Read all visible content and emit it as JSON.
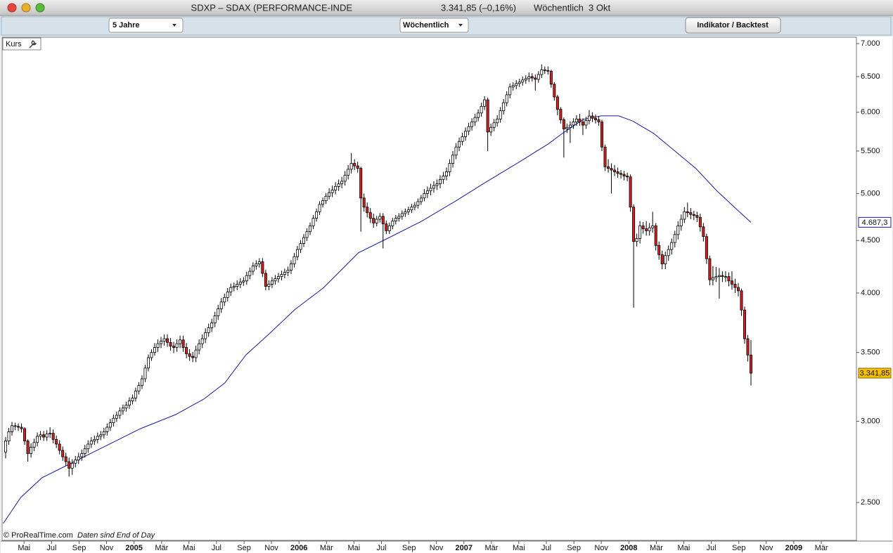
{
  "window": {
    "title": "SDXP – SDAX (PERFORMANCE-INDE",
    "quote": "3.341,85 (–0,16%)",
    "period": "Wöchentlich  3 Okt"
  },
  "toolbar": {
    "range": "5 Jahre",
    "interval": "Wöchentlich",
    "button": "Indikator / Backtest"
  },
  "panel_label": "Kurs",
  "footer": {
    "copyright": "© ProRealTime.com",
    "note": "Daten sind End of Day"
  },
  "chart_data": {
    "type": "candlestick",
    "log_scale": true,
    "ylim": [
      2300,
      7100
    ],
    "yticks": [
      {
        "value": 2500,
        "label": "2.500"
      },
      {
        "value": 3000,
        "label": "3.000"
      },
      {
        "value": 3500,
        "label": "3.500"
      },
      {
        "value": 4000,
        "label": "4.000"
      },
      {
        "value": 4500,
        "label": "4.500"
      },
      {
        "value": 5000,
        "label": "5.000"
      },
      {
        "value": 5500,
        "label": "5.500"
      },
      {
        "value": 6000,
        "label": "6.000"
      },
      {
        "value": 6500,
        "label": "6.500"
      },
      {
        "value": 7000,
        "label": "7.000"
      }
    ],
    "xlim": [
      2004.2,
      2009.38
    ],
    "xticks": [
      {
        "value": 2004.333,
        "label": "Mai"
      },
      {
        "value": 2004.5,
        "label": "Jul"
      },
      {
        "value": 2004.667,
        "label": "Sep"
      },
      {
        "value": 2004.833,
        "label": "Nov"
      },
      2005,
      {
        "value": 2005.167,
        "label": "Mär"
      },
      {
        "value": 2005.333,
        "label": "Mai"
      },
      {
        "value": 2005.5,
        "label": "Jul"
      },
      {
        "value": 2005.667,
        "label": "Sep"
      },
      {
        "value": 2005.833,
        "label": "Nov"
      },
      2006,
      {
        "value": 2006.167,
        "label": "Mär"
      },
      {
        "value": 2006.333,
        "label": "Mai"
      },
      {
        "value": 2006.5,
        "label": "Jul"
      },
      {
        "value": 2006.667,
        "label": "Sep"
      },
      {
        "value": 2006.833,
        "label": "Nov"
      },
      2007,
      {
        "value": 2007.167,
        "label": "Mär"
      },
      {
        "value": 2007.333,
        "label": "Mai"
      },
      {
        "value": 2007.5,
        "label": "Jul"
      },
      {
        "value": 2007.667,
        "label": "Sep"
      },
      {
        "value": 2007.833,
        "label": "Nov"
      },
      2008,
      {
        "value": 2008.167,
        "label": "Mär"
      },
      {
        "value": 2008.333,
        "label": "Mai"
      },
      {
        "value": 2008.5,
        "label": "Jul"
      },
      {
        "value": 2008.667,
        "label": "Sep"
      },
      {
        "value": 2008.833,
        "label": "Nov"
      },
      2009,
      {
        "value": 2009.167,
        "label": "Mär"
      }
    ],
    "candles": {
      "up_color": "#ffffff",
      "down_color": "#d42020",
      "open": [
        2800,
        2870,
        2930,
        2970,
        2965,
        2960,
        2950,
        2870,
        2790,
        2830,
        2860,
        2900,
        2910,
        2895,
        2915,
        2920,
        2880,
        2850,
        2810,
        2770,
        2740,
        2700,
        2730,
        2750,
        2770,
        2790,
        2820,
        2850,
        2870,
        2880,
        2900,
        2910,
        2930,
        2960,
        2990,
        3020,
        3040,
        3070,
        3090,
        3110,
        3140,
        3160,
        3210,
        3250,
        3300,
        3380,
        3460,
        3500,
        3540,
        3570,
        3590,
        3610,
        3580,
        3550,
        3540,
        3570,
        3600,
        3540,
        3490,
        3470,
        3460,
        3520,
        3570,
        3610,
        3660,
        3700,
        3740,
        3800,
        3860,
        3920,
        3960,
        4010,
        4050,
        4060,
        4080,
        4100,
        4110,
        4160,
        4200,
        4250,
        4270,
        4290,
        4180,
        4060,
        4080,
        4110,
        4130,
        4150,
        4170,
        4190,
        4210,
        4270,
        4340,
        4410,
        4470,
        4530,
        4590,
        4650,
        4730,
        4800,
        4880,
        4920,
        4970,
        5010,
        5040,
        5080,
        5110,
        5140,
        5210,
        5280,
        5350,
        5320,
        5290,
        4950,
        4850,
        4790,
        4730,
        4680,
        4720,
        4750,
        4670,
        4600,
        4650,
        4700,
        4730,
        4750,
        4780,
        4800,
        4820,
        4850,
        4870,
        4910,
        4950,
        5000,
        5030,
        5060,
        5090,
        5110,
        5160,
        5200,
        5250,
        5350,
        5450,
        5550,
        5620,
        5680,
        5750,
        5810,
        5870,
        5930,
        5990,
        6080,
        6170,
        5740,
        5800,
        5860,
        5910,
        6020,
        6130,
        6240,
        6350,
        6370,
        6400,
        6420,
        6450,
        6470,
        6500,
        6480,
        6460,
        6530,
        6600,
        6590,
        6580,
        6390,
        6210,
        6040,
        5900,
        5780,
        5800,
        5830,
        5870,
        5910,
        5870,
        5830,
        5890,
        5950,
        5920,
        5900,
        5870,
        5550,
        5310,
        5290,
        5270,
        5250,
        5230,
        5220,
        5200,
        5190,
        4850,
        4490,
        4520,
        4650,
        4620,
        4600,
        4630,
        4650,
        4450,
        4360,
        4270,
        4350,
        4410,
        4480,
        4560,
        4650,
        4720,
        4800,
        4790,
        4770,
        4760,
        4740,
        4640,
        4540,
        4320,
        4120,
        4140,
        4150,
        4160,
        4150,
        4150,
        4110,
        4080,
        4050,
        4020,
        3850,
        3610,
        3480
      ],
      "high": [
        2895,
        2955,
        2995,
        2990,
        2985,
        2985,
        2960,
        2880,
        2855,
        2885,
        2925,
        2935,
        2935,
        2940,
        2960,
        2945,
        2905,
        2875,
        2835,
        2795,
        2765,
        2755,
        2775,
        2795,
        2815,
        2845,
        2875,
        2895,
        2905,
        2925,
        2935,
        2955,
        2985,
        3015,
        3045,
        3065,
        3095,
        3115,
        3135,
        3165,
        3185,
        3235,
        3275,
        3325,
        3405,
        3485,
        3525,
        3575,
        3605,
        3625,
        3645,
        3645,
        3615,
        3585,
        3605,
        3635,
        3635,
        3575,
        3525,
        3505,
        3555,
        3605,
        3645,
        3695,
        3735,
        3775,
        3835,
        3895,
        3955,
        3995,
        4045,
        4085,
        4095,
        4115,
        4135,
        4145,
        4195,
        4235,
        4285,
        4305,
        4325,
        4325,
        4215,
        4115,
        4145,
        4165,
        4185,
        4205,
        4225,
        4245,
        4305,
        4375,
        4445,
        4505,
        4565,
        4625,
        4685,
        4765,
        4835,
        4915,
        4955,
        5005,
        5060,
        5090,
        5130,
        5160,
        5190,
        5260,
        5330,
        5475,
        5400,
        5370,
        5310,
        5000,
        4900,
        4840,
        4780,
        4755,
        4785,
        4785,
        4705,
        4685,
        4735,
        4765,
        4785,
        4815,
        4835,
        4855,
        4885,
        4905,
        4945,
        4985,
        5050,
        5080,
        5110,
        5140,
        5160,
        5210,
        5250,
        5300,
        5400,
        5500,
        5600,
        5670,
        5730,
        5800,
        5860,
        5920,
        5980,
        6040,
        6130,
        6220,
        6200,
        5850,
        5910,
        5960,
        6070,
        6180,
        6290,
        6400,
        6420,
        6450,
        6470,
        6500,
        6520,
        6560,
        6550,
        6530,
        6580,
        6680,
        6650,
        6650,
        6600,
        6420,
        6240,
        6070,
        5930,
        5850,
        5880,
        5920,
        5960,
        5980,
        5920,
        5940,
        6030,
        6000,
        5970,
        5950,
        5900,
        5580,
        5400,
        5350,
        5330,
        5300,
        5270,
        5260,
        5240,
        5220,
        4880,
        4570,
        4700,
        4690,
        4700,
        4680,
        4800,
        4680,
        4490,
        4400,
        4390,
        4450,
        4520,
        4600,
        4700,
        4770,
        4850,
        4900,
        4840,
        4810,
        4800,
        4780,
        4680,
        4570,
        4350,
        4250,
        4240,
        4230,
        4200,
        4200,
        4190,
        4200,
        4130,
        4090,
        4040,
        3880,
        3640,
        3600
      ],
      "low": [
        2760,
        2845,
        2905,
        2940,
        2935,
        2925,
        2845,
        2740,
        2765,
        2805,
        2835,
        2875,
        2870,
        2870,
        2890,
        2855,
        2825,
        2785,
        2745,
        2715,
        2650,
        2660,
        2705,
        2725,
        2745,
        2765,
        2795,
        2825,
        2845,
        2855,
        2875,
        2885,
        2905,
        2935,
        2965,
        2995,
        3015,
        3045,
        3065,
        3085,
        3115,
        3135,
        3185,
        3225,
        3275,
        3355,
        3435,
        3475,
        3505,
        3535,
        3555,
        3545,
        3515,
        3495,
        3505,
        3535,
        3505,
        3455,
        3435,
        3425,
        3425,
        3485,
        3535,
        3575,
        3625,
        3665,
        3705,
        3765,
        3825,
        3885,
        3925,
        3975,
        4015,
        4025,
        4045,
        4065,
        4075,
        4125,
        4165,
        4215,
        4235,
        4145,
        4025,
        4025,
        4045,
        4075,
        4095,
        4115,
        4135,
        4155,
        4175,
        4235,
        4305,
        4375,
        4435,
        4495,
        4555,
        4615,
        4695,
        4765,
        4845,
        4885,
        4935,
        4960,
        4990,
        5030,
        5060,
        5090,
        5160,
        5230,
        5270,
        5240,
        4590,
        4800,
        4740,
        4680,
        4630,
        4645,
        4685,
        4420,
        4565,
        4565,
        4615,
        4665,
        4695,
        4715,
        4745,
        4765,
        4785,
        4815,
        4835,
        4875,
        4915,
        4950,
        4980,
        5010,
        5040,
        5060,
        5110,
        5150,
        5200,
        5300,
        5400,
        5500,
        5570,
        5630,
        5700,
        5760,
        5820,
        5880,
        5940,
        6030,
        5500,
        5690,
        5750,
        5810,
        5860,
        5970,
        6080,
        6190,
        6300,
        6320,
        6350,
        6370,
        6400,
        6420,
        6430,
        6300,
        6410,
        6480,
        6540,
        6530,
        6340,
        6160,
        5960,
        5850,
        5420,
        5730,
        5600,
        5780,
        5820,
        5820,
        5700,
        5780,
        5840,
        5870,
        5850,
        5820,
        5500,
        5260,
        5240,
        5000,
        5200,
        5180,
        5170,
        5150,
        5140,
        4800,
        3870,
        4440,
        4470,
        4570,
        4550,
        4550,
        4580,
        4400,
        4310,
        4220,
        4220,
        4300,
        4360,
        4430,
        4510,
        4600,
        4680,
        4740,
        4720,
        4710,
        4690,
        4590,
        4490,
        4270,
        4070,
        4070,
        4100,
        3950,
        4100,
        4100,
        4060,
        4030,
        4000,
        3970,
        3800,
        3570,
        3430,
        3250
      ],
      "close": [
        2870,
        2930,
        2970,
        2965,
        2960,
        2950,
        2870,
        2790,
        2830,
        2860,
        2900,
        2910,
        2895,
        2915,
        2920,
        2880,
        2850,
        2810,
        2770,
        2740,
        2700,
        2730,
        2750,
        2770,
        2790,
        2820,
        2850,
        2870,
        2880,
        2900,
        2910,
        2930,
        2960,
        2990,
        3020,
        3040,
        3070,
        3090,
        3110,
        3140,
        3160,
        3210,
        3250,
        3300,
        3380,
        3460,
        3500,
        3540,
        3570,
        3590,
        3610,
        3580,
        3550,
        3540,
        3570,
        3600,
        3540,
        3490,
        3470,
        3460,
        3520,
        3570,
        3610,
        3660,
        3700,
        3740,
        3800,
        3860,
        3920,
        3960,
        4010,
        4050,
        4060,
        4080,
        4100,
        4110,
        4160,
        4200,
        4250,
        4270,
        4290,
        4180,
        4060,
        4080,
        4110,
        4130,
        4150,
        4170,
        4190,
        4210,
        4270,
        4340,
        4410,
        4470,
        4530,
        4590,
        4650,
        4730,
        4800,
        4880,
        4920,
        4970,
        5010,
        5040,
        5080,
        5110,
        5140,
        5210,
        5280,
        5350,
        5320,
        5290,
        4950,
        4850,
        4790,
        4730,
        4680,
        4720,
        4750,
        4670,
        4600,
        4650,
        4700,
        4730,
        4750,
        4780,
        4800,
        4820,
        4850,
        4870,
        4910,
        4950,
        5000,
        5030,
        5060,
        5090,
        5110,
        5160,
        5200,
        5250,
        5350,
        5450,
        5550,
        5620,
        5680,
        5750,
        5810,
        5870,
        5930,
        5990,
        6080,
        6170,
        5740,
        5800,
        5860,
        5910,
        6020,
        6130,
        6240,
        6350,
        6370,
        6400,
        6420,
        6450,
        6470,
        6500,
        6480,
        6460,
        6530,
        6600,
        6590,
        6580,
        6390,
        6210,
        6040,
        5900,
        5780,
        5800,
        5830,
        5870,
        5910,
        5870,
        5830,
        5890,
        5950,
        5920,
        5900,
        5870,
        5550,
        5310,
        5290,
        5270,
        5250,
        5230,
        5220,
        5200,
        5190,
        4850,
        4490,
        4520,
        4650,
        4620,
        4600,
        4630,
        4650,
        4450,
        4360,
        4270,
        4350,
        4410,
        4480,
        4560,
        4650,
        4720,
        4800,
        4790,
        4770,
        4760,
        4740,
        4640,
        4540,
        4320,
        4120,
        4140,
        4150,
        4160,
        4150,
        4150,
        4110,
        4080,
        4050,
        4020,
        3850,
        3610,
        3480,
        3341.85
      ]
    },
    "moving_average": {
      "color": "#1a1a9c",
      "x": [
        2004.207,
        2004.313,
        2004.441,
        2004.612,
        2004.825,
        2005.038,
        2005.252,
        2005.422,
        2005.55,
        2005.678,
        2005.806,
        2005.977,
        2006.147,
        2006.275,
        2006.36,
        2006.531,
        2006.744,
        2006.958,
        2007.128,
        2007.341,
        2007.512,
        2007.597,
        2007.725,
        2007.832,
        2007.938,
        2008.023,
        2008.151,
        2008.279,
        2008.407,
        2008.535,
        2008.663,
        2008.74
      ],
      "values": [
        2385,
        2528,
        2642,
        2727,
        2836,
        2950,
        3045,
        3152,
        3269,
        3481,
        3633,
        3857,
        4045,
        4241,
        4377,
        4516,
        4699,
        4926,
        5124,
        5373,
        5589,
        5722,
        5906,
        5952,
        5952,
        5884,
        5722,
        5501,
        5288,
        5028,
        4811,
        4687.3
      ]
    },
    "price_markers": [
      {
        "value": 4687.3,
        "label": "4.687,3",
        "color": "#ffffff",
        "border": "#1a1a9c",
        "text_color": "#1a1a9c"
      },
      {
        "value": 3341.85,
        "label": "3.341,85",
        "color": "#f5c000",
        "border": "#8a6a00",
        "text_color": "#111111"
      }
    ]
  }
}
